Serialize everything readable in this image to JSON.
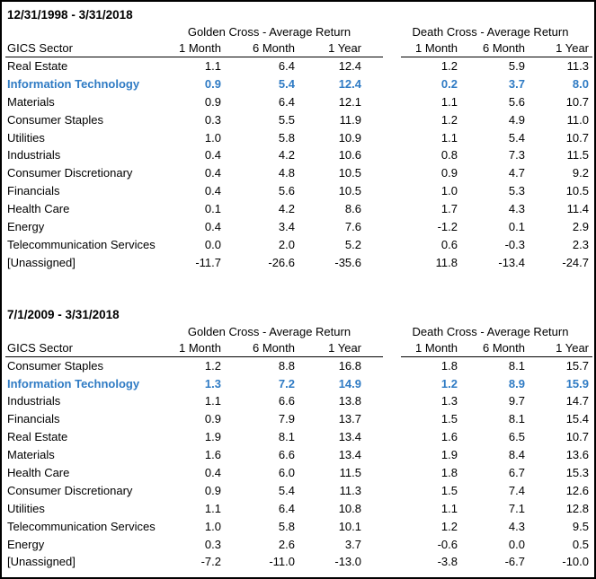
{
  "accent_color": "#2F7BC4",
  "chart_data": [
    {
      "type": "table",
      "title": "12/31/1998 - 3/31/2018",
      "group_headers": [
        "Golden Cross - Average Return",
        "Death Cross - Average Return"
      ],
      "sector_header": "GICS Sector",
      "col_headers": [
        "1 Month",
        "6 Month",
        "1 Year",
        "1 Month",
        "6 Month",
        "1 Year"
      ],
      "rows": [
        {
          "sector": "Real Estate",
          "values": [
            "1.1",
            "6.4",
            "12.4",
            "1.2",
            "5.9",
            "11.3"
          ],
          "highlight": false
        },
        {
          "sector": "Information Technology",
          "values": [
            "0.9",
            "5.4",
            "12.4",
            "0.2",
            "3.7",
            "8.0"
          ],
          "highlight": true
        },
        {
          "sector": "Materials",
          "values": [
            "0.9",
            "6.4",
            "12.1",
            "1.1",
            "5.6",
            "10.7"
          ],
          "highlight": false
        },
        {
          "sector": "Consumer Staples",
          "values": [
            "0.3",
            "5.5",
            "11.9",
            "1.2",
            "4.9",
            "11.0"
          ],
          "highlight": false
        },
        {
          "sector": "Utilities",
          "values": [
            "1.0",
            "5.8",
            "10.9",
            "1.1",
            "5.4",
            "10.7"
          ],
          "highlight": false
        },
        {
          "sector": "Industrials",
          "values": [
            "0.4",
            "4.2",
            "10.6",
            "0.8",
            "7.3",
            "11.5"
          ],
          "highlight": false
        },
        {
          "sector": "Consumer Discretionary",
          "values": [
            "0.4",
            "4.8",
            "10.5",
            "0.9",
            "4.7",
            "9.2"
          ],
          "highlight": false
        },
        {
          "sector": "Financials",
          "values": [
            "0.4",
            "5.6",
            "10.5",
            "1.0",
            "5.3",
            "10.5"
          ],
          "highlight": false
        },
        {
          "sector": "Health Care",
          "values": [
            "0.1",
            "4.2",
            "8.6",
            "1.7",
            "4.3",
            "11.4"
          ],
          "highlight": false
        },
        {
          "sector": "Energy",
          "values": [
            "0.4",
            "3.4",
            "7.6",
            "-1.2",
            "0.1",
            "2.9"
          ],
          "highlight": false
        },
        {
          "sector": "Telecommunication Services",
          "values": [
            "0.0",
            "2.0",
            "5.2",
            "0.6",
            "-0.3",
            "2.3"
          ],
          "highlight": false
        },
        {
          "sector": "[Unassigned]",
          "values": [
            "-11.7",
            "-26.6",
            "-35.6",
            "11.8",
            "-13.4",
            "-24.7"
          ],
          "highlight": false
        }
      ]
    },
    {
      "type": "table",
      "title": "7/1/2009 - 3/31/2018",
      "group_headers": [
        "Golden Cross - Average Return",
        "Death Cross - Average Return"
      ],
      "sector_header": "GICS Sector",
      "col_headers": [
        "1 Month",
        "6 Month",
        "1 Year",
        "1 Month",
        "6 Month",
        "1 Year"
      ],
      "rows": [
        {
          "sector": "Consumer Staples",
          "values": [
            "1.2",
            "8.8",
            "16.8",
            "1.8",
            "8.1",
            "15.7"
          ],
          "highlight": false
        },
        {
          "sector": "Information Technology",
          "values": [
            "1.3",
            "7.2",
            "14.9",
            "1.2",
            "8.9",
            "15.9"
          ],
          "highlight": true
        },
        {
          "sector": "Industrials",
          "values": [
            "1.1",
            "6.6",
            "13.8",
            "1.3",
            "9.7",
            "14.7"
          ],
          "highlight": false
        },
        {
          "sector": "Financials",
          "values": [
            "0.9",
            "7.9",
            "13.7",
            "1.5",
            "8.1",
            "15.4"
          ],
          "highlight": false
        },
        {
          "sector": "Real Estate",
          "values": [
            "1.9",
            "8.1",
            "13.4",
            "1.6",
            "6.5",
            "10.7"
          ],
          "highlight": false
        },
        {
          "sector": "Materials",
          "values": [
            "1.6",
            "6.6",
            "13.4",
            "1.9",
            "8.4",
            "13.6"
          ],
          "highlight": false
        },
        {
          "sector": "Health Care",
          "values": [
            "0.4",
            "6.0",
            "11.5",
            "1.8",
            "6.7",
            "15.3"
          ],
          "highlight": false
        },
        {
          "sector": "Consumer Discretionary",
          "values": [
            "0.9",
            "5.4",
            "11.3",
            "1.5",
            "7.4",
            "12.6"
          ],
          "highlight": false
        },
        {
          "sector": "Utilities",
          "values": [
            "1.1",
            "6.4",
            "10.8",
            "1.1",
            "7.1",
            "12.8"
          ],
          "highlight": false
        },
        {
          "sector": "Telecommunication Services",
          "values": [
            "1.0",
            "5.8",
            "10.1",
            "1.2",
            "4.3",
            "9.5"
          ],
          "highlight": false
        },
        {
          "sector": "Energy",
          "values": [
            "0.3",
            "2.6",
            "3.7",
            "-0.6",
            "0.0",
            "0.5"
          ],
          "highlight": false
        },
        {
          "sector": "[Unassigned]",
          "values": [
            "-7.2",
            "-11.0",
            "-13.0",
            "-3.8",
            "-6.7",
            "-10.0"
          ],
          "highlight": false
        }
      ]
    }
  ]
}
